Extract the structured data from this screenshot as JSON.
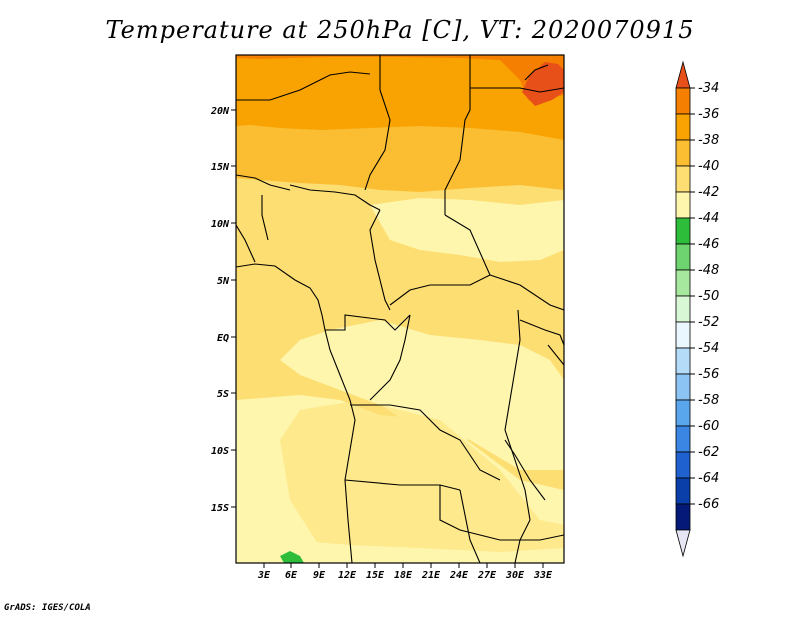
{
  "title": "Temperature at 250hPa [C], VT: 2020070915",
  "credit": "GrADS: IGES/COLA",
  "lat_ticks": [
    "20N",
    "15N",
    "10N",
    "5N",
    "EQ",
    "5S",
    "10S",
    "15S"
  ],
  "lon_ticks": [
    "3E",
    "6E",
    "9E",
    "12E",
    "15E",
    "18E",
    "21E",
    "24E",
    "27E",
    "30E",
    "33E"
  ],
  "colorbar": {
    "labels": [
      "-34",
      "-36",
      "-38",
      "-40",
      "-42",
      "-44",
      "-46",
      "-48",
      "-50",
      "-52",
      "-54",
      "-56",
      "-58",
      "-60",
      "-62",
      "-64",
      "-66"
    ],
    "colors": [
      "#e8501a",
      "#f47f00",
      "#f9a302",
      "#fbbe33",
      "#fdde73",
      "#fef6ad",
      "#2ebd3a",
      "#6ed46f",
      "#a6e89e",
      "#d8f7d4",
      "#eaf7fe",
      "#b4dcf9",
      "#8cc4f4",
      "#5aa6ec",
      "#3b86e2",
      "#1f61cf",
      "#0a3ea8",
      "#051a78",
      "#e6e6f5"
    ]
  },
  "map": {
    "region": "Central Africa",
    "variable": "Temperature",
    "level": "250hPa",
    "unit": "C"
  }
}
